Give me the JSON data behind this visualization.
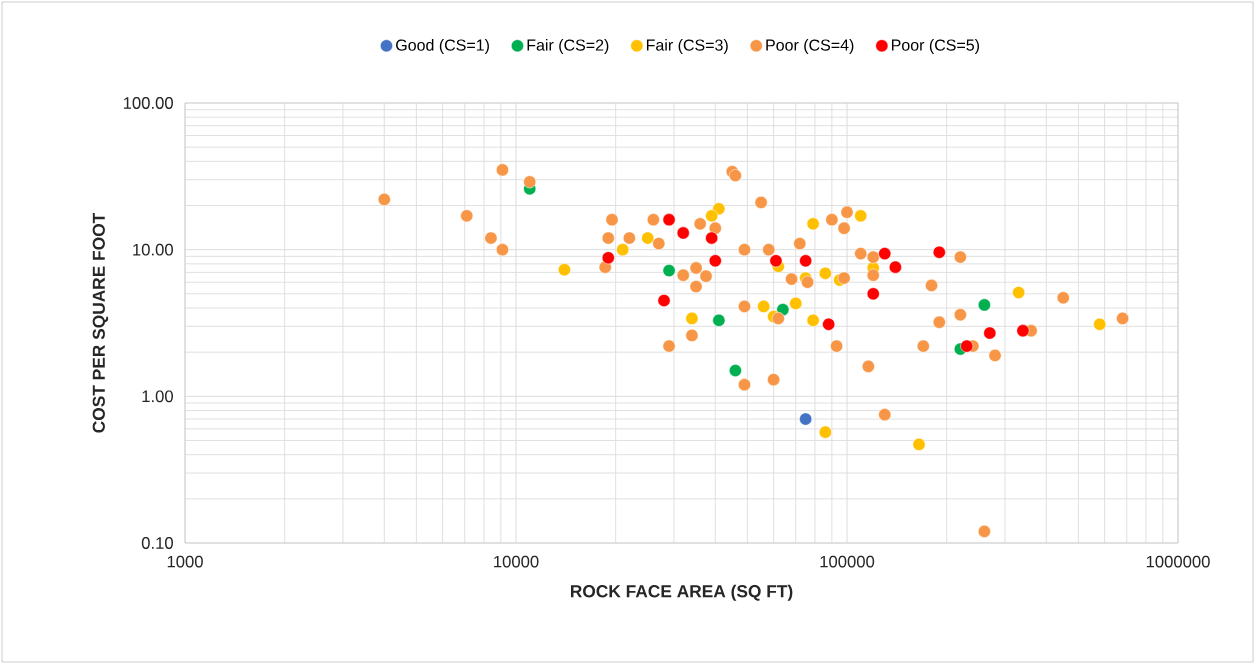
{
  "chart_data": {
    "type": "scatter",
    "xlabel": "ROCK FACE AREA (SQ FT)",
    "ylabel": "COST PER SQUARE FOOT",
    "log": "xy",
    "grid": true,
    "legend": "top",
    "marker": "circle",
    "xlim": [
      1000,
      1000000
    ],
    "xticks": [
      1000,
      10000,
      100000,
      1000000
    ],
    "ylim": [
      0.1,
      100
    ],
    "yticks": [
      {
        "value": 0.1,
        "label": "0.10"
      },
      {
        "value": 1,
        "label": "1.00"
      },
      {
        "value": 10,
        "label": "10.00"
      },
      {
        "value": 100,
        "label": "100.00"
      }
    ],
    "series": [
      {
        "name": "Good (CS=1)",
        "color": "#4472c4",
        "x": [
          75000
        ],
        "values": [
          0.7
        ]
      },
      {
        "name": "Fair (CS=2)",
        "color": "#00b050",
        "x": [
          11000,
          29000,
          41000,
          46000,
          64000,
          260000,
          220000
        ],
        "values": [
          26,
          7.2,
          3.3,
          1.5,
          3.9,
          4.2,
          2.1
        ]
      },
      {
        "name": "Fair (CS=3)",
        "color": "#ffc000",
        "x": [
          14000,
          21000,
          25000,
          41000,
          39000,
          34000,
          56000,
          70000,
          60000,
          79000,
          62000,
          75000,
          79000,
          86000,
          95000,
          110000,
          120000,
          86000,
          165000,
          330000,
          580000
        ],
        "values": [
          7.3,
          10,
          12,
          19,
          17,
          3.4,
          4.1,
          4.3,
          3.5,
          3.3,
          7.7,
          6.4,
          15,
          6.9,
          6.2,
          17,
          7.5,
          0.57,
          0.47,
          5.1,
          3.1
        ]
      },
      {
        "name": "Poor (CS=4)",
        "color": "#f79646",
        "x": [
          4000,
          9100,
          11000,
          7100,
          8400,
          9100,
          19500,
          26000,
          19000,
          22000,
          27000,
          18600,
          32000,
          35000,
          37500,
          35000,
          34000,
          29000,
          36000,
          40000,
          55000,
          45000,
          46000,
          49000,
          58000,
          72000,
          100000,
          90000,
          98000,
          68000,
          76000,
          98000,
          110000,
          120000,
          120000,
          220000,
          180000,
          49000,
          62000,
          220000,
          190000,
          93000,
          170000,
          240000,
          280000,
          116000,
          49000,
          60000,
          130000,
          260000,
          450000,
          680000,
          360000
        ],
        "values": [
          22,
          35,
          29,
          17,
          12,
          10,
          16,
          16,
          12,
          12,
          11,
          7.6,
          6.7,
          7.5,
          6.6,
          5.6,
          2.6,
          2.2,
          15,
          14,
          21,
          34,
          32,
          10,
          10,
          11,
          18,
          16,
          14,
          6.3,
          6.0,
          6.4,
          9.4,
          8.9,
          6.7,
          8.9,
          5.7,
          4.1,
          3.4,
          3.6,
          3.2,
          2.2,
          2.2,
          2.2,
          1.9,
          1.6,
          1.2,
          1.3,
          0.75,
          0.12,
          4.7,
          3.4,
          2.8
        ]
      },
      {
        "name": "Poor (CS=5)",
        "color": "#ff0000",
        "x": [
          29000,
          32000,
          19000,
          28000,
          39000,
          40000,
          61000,
          75000,
          130000,
          140000,
          190000,
          120000,
          88000,
          270000,
          340000,
          230000
        ],
        "values": [
          16,
          13,
          8.8,
          4.5,
          12,
          8.4,
          8.4,
          8.4,
          9.4,
          7.6,
          9.6,
          5.0,
          3.1,
          2.7,
          2.8,
          2.2
        ]
      }
    ]
  }
}
